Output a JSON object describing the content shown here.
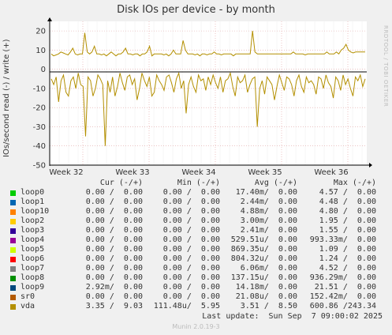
{
  "title": "Disk IOs per device - by month",
  "side_label": "RRDTOOL / TOBI OETIKER",
  "footer": "Munin 2.0.19-3",
  "last_update": "Last update:  Sun Sep  7 09:00:02 2025",
  "legend": {
    "headers": [
      "Cur (-/+)",
      "Min (-/+)",
      "Avg (-/+)",
      "Max (-/+)"
    ],
    "rows": [
      {
        "name": "loop0",
        "color": "#00cc00",
        "cur": "0.00 /  0.00",
        "min": "0.00 /  0.00",
        "avg": "17.40m/  0.00",
        "max": "4.57 /  0.00"
      },
      {
        "name": "loop1",
        "color": "#0066b3",
        "cur": "0.00 /  0.00",
        "min": "0.00 /  0.00",
        "avg": "2.44m/  0.00",
        "max": "4.48 /  0.00"
      },
      {
        "name": "loop10",
        "color": "#ff8000",
        "cur": "0.00 /  0.00",
        "min": "0.00 /  0.00",
        "avg": "4.88m/  0.00",
        "max": "4.80 /  0.00"
      },
      {
        "name": "loop2",
        "color": "#ffcc00",
        "cur": "0.00 /  0.00",
        "min": "0.00 /  0.00",
        "avg": "3.00m/  0.00",
        "max": "1.95 /  0.00"
      },
      {
        "name": "loop3",
        "color": "#330099",
        "cur": "0.00 /  0.00",
        "min": "0.00 /  0.00",
        "avg": "2.41m/  0.00",
        "max": "1.55 /  0.00"
      },
      {
        "name": "loop4",
        "color": "#990099",
        "cur": "0.00 /  0.00",
        "min": "0.00 /  0.00",
        "avg": "529.51u/  0.00",
        "max": "993.33m/  0.00"
      },
      {
        "name": "loop5",
        "color": "#ccff00",
        "cur": "0.00 /  0.00",
        "min": "0.00 /  0.00",
        "avg": "869.35u/  0.00",
        "max": "1.09 /  0.00"
      },
      {
        "name": "loop6",
        "color": "#ff0000",
        "cur": "0.00 /  0.00",
        "min": "0.00 /  0.00",
        "avg": "804.32u/  0.00",
        "max": "1.24 /  0.00"
      },
      {
        "name": "loop7",
        "color": "#808080",
        "cur": "0.00 /  0.00",
        "min": "0.00 /  0.00",
        "avg": "6.06m/  0.00",
        "max": "4.52 /  0.00"
      },
      {
        "name": "loop8",
        "color": "#008f00",
        "cur": "0.00 /  0.00",
        "min": "0.00 /  0.00",
        "avg": "137.15u/  0.00",
        "max": "936.29m/  0.00"
      },
      {
        "name": "loop9",
        "color": "#00487d",
        "cur": "2.92m/  0.00",
        "min": "0.00 /  0.00",
        "avg": "14.18m/  0.00",
        "max": "21.51 /  0.00"
      },
      {
        "name": "sr0",
        "color": "#b35a00",
        "cur": "0.00 /  0.00",
        "min": "0.00 /  0.00",
        "avg": "21.08u/  0.00",
        "max": "152.42m/  0.00"
      },
      {
        "name": "vda",
        "color": "#b38f00",
        "cur": "3.35 /  9.03",
        "min": "111.48u/  5.95",
        "avg": "3.51 /  8.50",
        "max": "600.86 /243.34"
      }
    ]
  },
  "chart_data": {
    "type": "line",
    "ylabel": "IOs/second read (-) / write (+)",
    "ylim": [
      -50,
      25
    ],
    "yticks": [
      20,
      10,
      0,
      -10,
      -20,
      -30,
      -40,
      -50
    ],
    "x_labels": [
      "Week 32",
      "Week 33",
      "Week 34",
      "Week 35",
      "Week 36"
    ],
    "grid": true,
    "series": [
      {
        "name": "vda",
        "color": "#b38f00",
        "write_values": [
          8,
          7,
          7.5,
          8,
          9,
          8.5,
          8,
          7.5,
          9,
          11,
          8,
          7.5,
          8,
          8,
          19,
          9,
          8,
          9,
          12,
          8,
          8,
          7.5,
          8,
          7,
          8,
          9,
          8,
          7,
          8,
          8,
          9,
          11,
          8,
          8,
          7.5,
          8,
          8,
          7,
          8,
          8,
          9,
          12,
          7,
          8,
          8,
          8,
          8,
          7.5,
          8,
          7,
          8,
          10,
          8,
          8,
          8,
          15,
          10,
          8,
          8,
          8,
          7.5,
          8,
          7,
          8,
          8,
          7.5,
          8,
          8,
          9,
          8,
          8,
          7.5,
          8,
          8,
          8,
          8,
          7,
          8,
          8,
          8,
          8,
          8,
          8,
          8,
          20,
          9,
          8,
          8,
          8,
          8,
          8,
          8,
          8,
          8,
          8,
          8,
          8,
          8,
          8,
          8,
          8,
          9,
          8,
          8,
          8,
          8,
          7.5,
          8,
          8,
          8,
          8,
          8,
          8,
          8,
          8,
          9,
          8,
          8,
          8,
          9,
          8,
          10,
          11,
          13,
          10,
          9,
          8.5,
          9,
          9,
          9,
          9,
          9
        ],
        "read_values": [
          -5,
          -8,
          -4,
          -17,
          -6,
          -3,
          -12,
          -14,
          -6,
          -4,
          -10,
          -2,
          -8,
          -9,
          -35,
          -4,
          -6,
          -14,
          -10,
          -3,
          -5,
          -8,
          -40,
          -6,
          -12,
          -4,
          -14,
          -9,
          -2,
          -7,
          -11,
          -4,
          -3,
          -8,
          -5,
          -16,
          -10,
          -2,
          -6,
          -9,
          -4,
          -14,
          -12,
          -3,
          -6,
          -8,
          -11,
          -4,
          -3,
          -7,
          -12,
          -5,
          -2,
          -10,
          -6,
          -23,
          -8,
          -4,
          -9,
          -12,
          -3,
          -6,
          -5,
          -11,
          -4,
          -8,
          -3,
          -7,
          -10,
          -4,
          -12,
          -6,
          -5,
          -2,
          -9,
          -14,
          -4,
          -7,
          -6,
          -3,
          -12,
          -8,
          -5,
          -4,
          -30,
          -10,
          -6,
          -13,
          -4,
          -6,
          -8,
          -16,
          -9,
          -3,
          -7,
          -11,
          -4,
          -5,
          -8,
          -14,
          -6,
          -3,
          -9,
          -12,
          -4,
          -7,
          -6,
          -8,
          -13,
          -4,
          -5,
          -10,
          -3,
          -7,
          -9,
          -15,
          -4,
          -6,
          -11,
          -3,
          -8,
          -5,
          -10,
          -14,
          -4,
          -6,
          -3,
          -9,
          -5
        ]
      }
    ]
  }
}
